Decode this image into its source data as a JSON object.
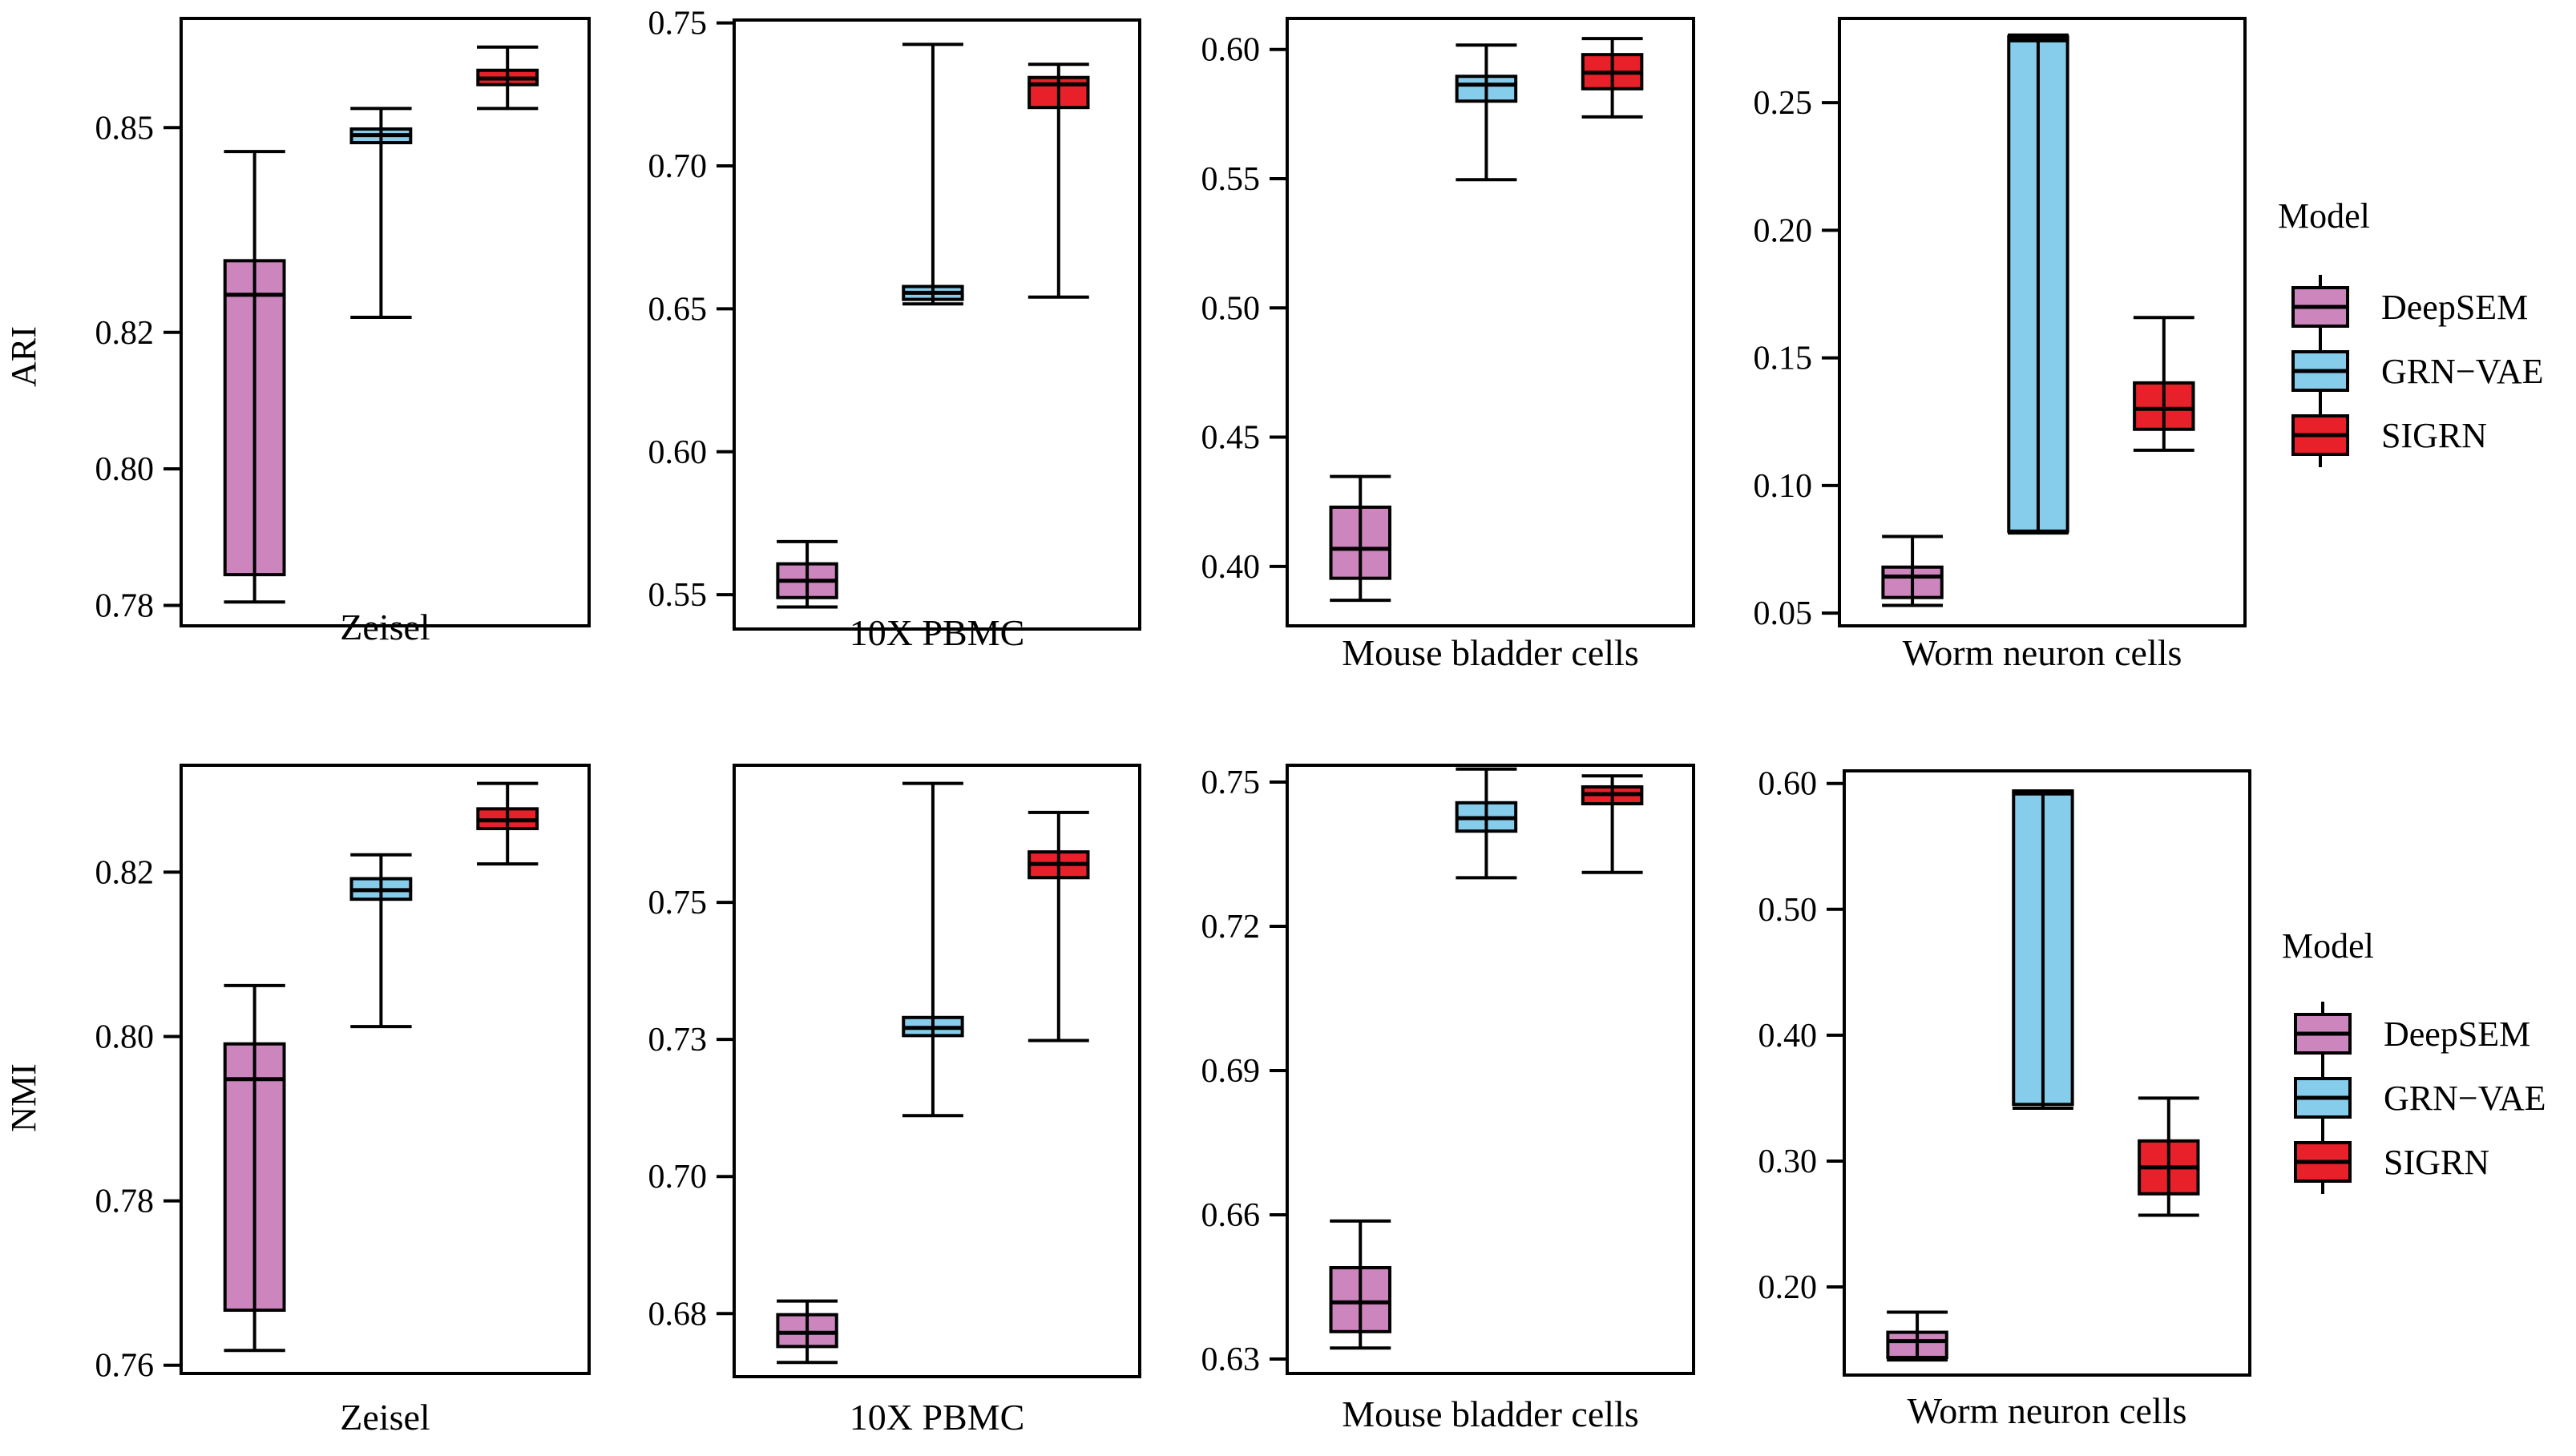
{
  "colors": {
    "DeepSEM": "#cc85bd",
    "GRN-VAE": "#86cceb",
    "SIGRN": "#e8202a"
  },
  "legends": [
    {
      "title": "Model",
      "items": [
        "DeepSEM",
        "GRN−VAE",
        "SIGRN"
      ],
      "keys": [
        "DeepSEM",
        "GRN-VAE",
        "SIGRN"
      ]
    },
    {
      "title": "Model",
      "items": [
        "DeepSEM",
        "GRN−VAE",
        "SIGRN"
      ],
      "keys": [
        "DeepSEM",
        "GRN-VAE",
        "SIGRN"
      ]
    }
  ],
  "chart_data": [
    {
      "type": "boxplot",
      "metric": "ARI",
      "ylabel": "ARI",
      "xlabel": "Zeisel",
      "ylim": [
        0.777,
        0.866
      ],
      "ticks": [
        0.78,
        0.8,
        0.82,
        0.85
      ],
      "tick_labels": [
        "0.78",
        "0.80",
        "0.82",
        "0.85"
      ],
      "series": [
        {
          "name": "DeepSEM",
          "min": 0.7805,
          "q1": 0.7845,
          "median": 0.8255,
          "q3": 0.8305,
          "max": 0.8465
        },
        {
          "name": "GRN-VAE",
          "min": 0.8222,
          "q1": 0.8478,
          "median": 0.8489,
          "q3": 0.8498,
          "max": 0.8528
        },
        {
          "name": "SIGRN",
          "min": 0.8528,
          "q1": 0.8563,
          "median": 0.8572,
          "q3": 0.8584,
          "max": 0.8618
        }
      ]
    },
    {
      "type": "boxplot",
      "metric": "ARI",
      "xlabel": "10X PBMC",
      "ylim": [
        0.538,
        0.751
      ],
      "ticks": [
        0.55,
        0.6,
        0.65,
        0.7,
        0.75
      ],
      "tick_labels": [
        "0.55",
        "0.60",
        "0.65",
        "0.70",
        "0.75"
      ],
      "series": [
        {
          "name": "DeepSEM",
          "min": 0.5457,
          "q1": 0.549,
          "median": 0.5549,
          "q3": 0.5608,
          "max": 0.5686
        },
        {
          "name": "GRN-VAE",
          "min": 0.6517,
          "q1": 0.6533,
          "median": 0.6556,
          "q3": 0.6578,
          "max": 0.7425
        },
        {
          "name": "SIGRN",
          "min": 0.6541,
          "q1": 0.7204,
          "median": 0.7285,
          "q3": 0.7309,
          "max": 0.7355
        }
      ]
    },
    {
      "type": "boxplot",
      "metric": "ARI",
      "xlabel": "Mouse bladder cells",
      "ylim": [
        0.377,
        0.612
      ],
      "ticks": [
        0.4,
        0.45,
        0.5,
        0.55,
        0.6
      ],
      "tick_labels": [
        "0.40",
        "0.45",
        "0.50",
        "0.55",
        "0.60"
      ],
      "series": [
        {
          "name": "DeepSEM",
          "min": 0.3869,
          "q1": 0.3954,
          "median": 0.4068,
          "q3": 0.4229,
          "max": 0.4348
        },
        {
          "name": "GRN-VAE",
          "min": 0.5496,
          "q1": 0.58,
          "median": 0.5864,
          "q3": 0.5896,
          "max": 0.6017
        },
        {
          "name": "SIGRN",
          "min": 0.5739,
          "q1": 0.5848,
          "median": 0.591,
          "q3": 0.598,
          "max": 0.6042
        }
      ]
    },
    {
      "type": "boxplot",
      "metric": "ARI",
      "xlabel": "Worm neuron cells",
      "ylim": [
        0.045,
        0.283
      ],
      "ticks": [
        0.05,
        0.1,
        0.15,
        0.2,
        0.25
      ],
      "tick_labels": [
        "0.05",
        "0.10",
        "0.15",
        "0.20",
        "0.25"
      ],
      "series": [
        {
          "name": "DeepSEM",
          "min": 0.053,
          "q1": 0.0561,
          "median": 0.0643,
          "q3": 0.068,
          "max": 0.08
        },
        {
          "name": "GRN-VAE",
          "min": 0.0814,
          "q1": 0.0821,
          "median": 0.2744,
          "q3": 0.2758,
          "max": 0.2765
        },
        {
          "name": "SIGRN",
          "min": 0.1138,
          "q1": 0.122,
          "median": 0.13,
          "q3": 0.1402,
          "max": 0.1658
        }
      ]
    },
    {
      "type": "boxplot",
      "metric": "NMI",
      "ylabel": "NMI",
      "xlabel": "Zeisel",
      "ylim": [
        0.759,
        0.833
      ],
      "ticks": [
        0.76,
        0.78,
        0.8,
        0.82
      ],
      "tick_labels": [
        "0.76",
        "0.78",
        "0.80",
        "0.82"
      ],
      "series": [
        {
          "name": "DeepSEM",
          "min": 0.7618,
          "q1": 0.7667,
          "median": 0.7948,
          "q3": 0.7991,
          "max": 0.8062
        },
        {
          "name": "GRN-VAE",
          "min": 0.8012,
          "q1": 0.8167,
          "median": 0.8178,
          "q3": 0.8192,
          "max": 0.8221
        },
        {
          "name": "SIGRN",
          "min": 0.821,
          "q1": 0.8253,
          "median": 0.8263,
          "q3": 0.8277,
          "max": 0.8308
        }
      ]
    },
    {
      "type": "boxplot",
      "metric": "NMI",
      "xlabel": "10X PBMC",
      "ylim": [
        0.6635,
        0.775
      ],
      "ticks": [
        0.675,
        0.7,
        0.725,
        0.75
      ],
      "tick_labels": [
        "0.68",
        "0.70",
        "0.73",
        "0.75"
      ],
      "series": [
        {
          "name": "DeepSEM",
          "min": 0.6661,
          "q1": 0.669,
          "median": 0.6715,
          "q3": 0.6748,
          "max": 0.6773
        },
        {
          "name": "GRN-VAE",
          "min": 0.7111,
          "q1": 0.7257,
          "median": 0.7271,
          "q3": 0.729,
          "max": 0.7717
        },
        {
          "name": "SIGRN",
          "min": 0.7248,
          "q1": 0.7545,
          "median": 0.757,
          "q3": 0.7592,
          "max": 0.7664
        }
      ]
    },
    {
      "type": "boxplot",
      "metric": "NMI",
      "xlabel": "Mouse bladder cells",
      "ylim": [
        0.627,
        0.7535
      ],
      "ticks": [
        0.63,
        0.66,
        0.69,
        0.72,
        0.75
      ],
      "tick_labels": [
        "0.63",
        "0.66",
        "0.69",
        "0.72",
        "0.75"
      ],
      "series": [
        {
          "name": "DeepSEM",
          "min": 0.6323,
          "q1": 0.6357,
          "median": 0.6418,
          "q3": 0.649,
          "max": 0.6587
        },
        {
          "name": "GRN-VAE",
          "min": 0.7301,
          "q1": 0.7398,
          "median": 0.7425,
          "q3": 0.7457,
          "max": 0.7527
        },
        {
          "name": "SIGRN",
          "min": 0.7312,
          "q1": 0.7455,
          "median": 0.7475,
          "q3": 0.749,
          "max": 0.7513
        }
      ]
    },
    {
      "type": "boxplot",
      "metric": "NMI",
      "xlabel": "Worm neuron cells",
      "ylim": [
        0.13,
        0.61
      ],
      "ticks": [
        0.2,
        0.3,
        0.4,
        0.5,
        0.6
      ],
      "tick_labels": [
        "0.20",
        "0.30",
        "0.40",
        "0.50",
        "0.60"
      ],
      "series": [
        {
          "name": "DeepSEM",
          "min": 0.142,
          "q1": 0.144,
          "median": 0.157,
          "q3": 0.164,
          "max": 0.18
        },
        {
          "name": "GRN-VAE",
          "min": 0.342,
          "q1": 0.345,
          "median": 0.592,
          "q3": 0.594,
          "max": 0.594
        },
        {
          "name": "SIGRN",
          "min": 0.257,
          "q1": 0.274,
          "median": 0.295,
          "q3": 0.316,
          "max": 0.35
        }
      ]
    }
  ]
}
